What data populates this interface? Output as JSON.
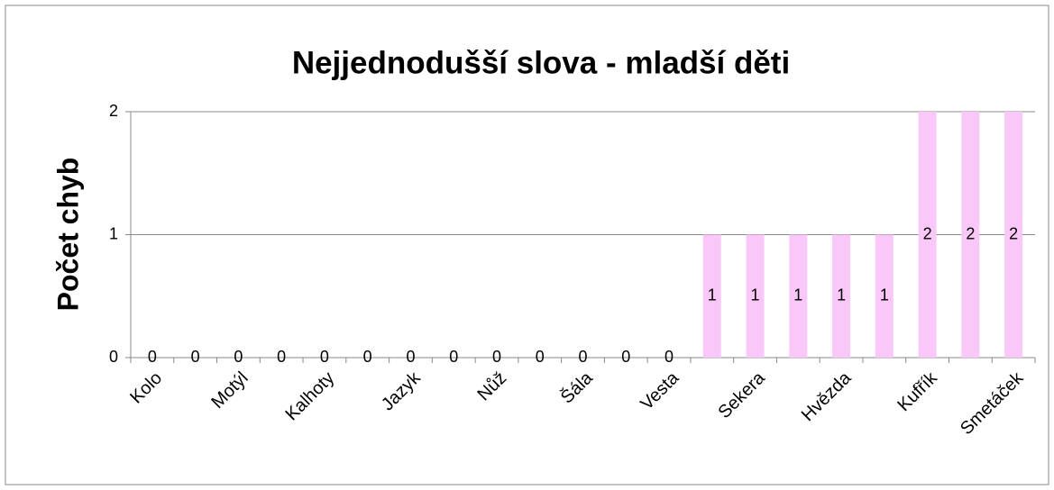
{
  "chart_data": {
    "type": "bar",
    "title": "Nejjednodušší slova - mladší děti",
    "y_label": "Počet chyb",
    "categories": [
      "Kolo",
      null,
      "Motýl",
      null,
      "Kalhoty",
      null,
      "Jazyk",
      null,
      "Nůž",
      null,
      "Šála",
      null,
      "Vesta",
      null,
      "Sekera",
      null,
      "Hvězda",
      null,
      "Kufřík",
      null,
      "Smetáček"
    ],
    "values": [
      0,
      0,
      0,
      0,
      0,
      0,
      0,
      0,
      0,
      0,
      0,
      0,
      0,
      1,
      1,
      1,
      1,
      1,
      2,
      2,
      2
    ],
    "color": "#fac8f8",
    "ylim": [
      0,
      2
    ],
    "yticks": [
      0,
      1,
      2
    ],
    "grid": true
  }
}
